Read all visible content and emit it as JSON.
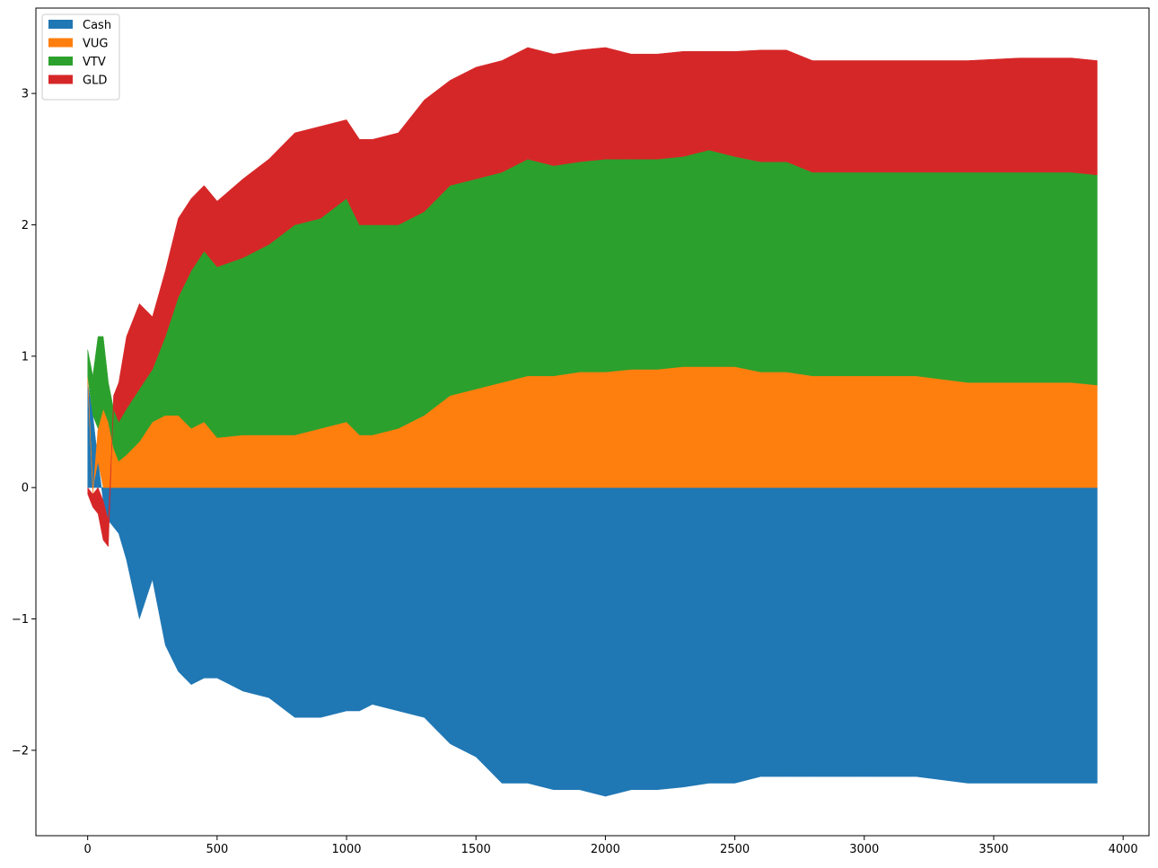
{
  "chart_data": {
    "type": "area",
    "title": "",
    "xlabel": "",
    "ylabel": "",
    "xlim": [
      -200,
      4100
    ],
    "ylim": [
      -2.65,
      3.65
    ],
    "grid": false,
    "legend_position": "top-left",
    "x_ticks": [
      0,
      500,
      1000,
      1500,
      2000,
      2500,
      3000,
      3500,
      4000
    ],
    "x_tick_labels": [
      "0",
      "500",
      "1000",
      "1500",
      "2000",
      "2500",
      "3000",
      "3500",
      "4000"
    ],
    "y_ticks": [
      -2,
      -1,
      0,
      1,
      2,
      3
    ],
    "y_tick_labels": [
      "−2",
      "−1",
      "0",
      "1",
      "2",
      "3"
    ],
    "x": [
      0,
      20,
      40,
      60,
      80,
      100,
      120,
      150,
      200,
      250,
      300,
      350,
      400,
      450,
      500,
      600,
      700,
      800,
      900,
      1000,
      1050,
      1100,
      1200,
      1300,
      1400,
      1500,
      1600,
      1700,
      1800,
      1900,
      2000,
      2100,
      2200,
      2300,
      2400,
      2500,
      2600,
      2700,
      2800,
      2900,
      3000,
      3200,
      3400,
      3600,
      3800,
      3900
    ],
    "series": [
      {
        "name": "Cash",
        "color": "#1f77b4",
        "values": [
          0.8,
          0.55,
          0.2,
          -0.1,
          -0.25,
          -0.3,
          -0.35,
          -0.55,
          -1.0,
          -0.7,
          -1.2,
          -1.4,
          -1.5,
          -1.45,
          -1.45,
          -1.55,
          -1.6,
          -1.75,
          -1.75,
          -1.7,
          -1.7,
          -1.65,
          -1.7,
          -1.75,
          -1.95,
          -2.05,
          -2.25,
          -2.25,
          -2.3,
          -2.3,
          -2.35,
          -2.3,
          -2.3,
          -2.28,
          -2.25,
          -2.25,
          -2.2,
          -2.2,
          -2.2,
          -2.2,
          -2.2,
          -2.2,
          -2.25,
          -2.25,
          -2.25,
          -2.25
        ]
      },
      {
        "name": "VUG",
        "color": "#ff7f0e",
        "values": [
          0.05,
          -0.05,
          0.25,
          0.6,
          0.5,
          0.3,
          0.2,
          0.25,
          0.35,
          0.5,
          0.55,
          0.55,
          0.45,
          0.5,
          0.38,
          0.4,
          0.4,
          0.4,
          0.45,
          0.5,
          0.4,
          0.4,
          0.45,
          0.55,
          0.7,
          0.75,
          0.8,
          0.85,
          0.85,
          0.88,
          0.88,
          0.9,
          0.9,
          0.92,
          0.92,
          0.92,
          0.88,
          0.88,
          0.85,
          0.85,
          0.85,
          0.85,
          0.8,
          0.8,
          0.8,
          0.78
        ]
      },
      {
        "name": "VTV",
        "color": "#2ca02c",
        "values": [
          0.2,
          0.3,
          0.7,
          0.55,
          0.3,
          0.3,
          0.3,
          0.35,
          0.4,
          0.4,
          0.6,
          0.9,
          1.2,
          1.3,
          1.3,
          1.35,
          1.45,
          1.6,
          1.6,
          1.7,
          1.6,
          1.6,
          1.55,
          1.55,
          1.6,
          1.6,
          1.6,
          1.65,
          1.6,
          1.6,
          1.62,
          1.6,
          1.6,
          1.6,
          1.65,
          1.6,
          1.6,
          1.6,
          1.55,
          1.55,
          1.55,
          1.55,
          1.6,
          1.6,
          1.6,
          1.6
        ]
      },
      {
        "name": "GLD",
        "color": "#d62728",
        "values": [
          -0.05,
          -0.1,
          -0.2,
          -0.3,
          -0.2,
          0.1,
          0.3,
          0.55,
          0.65,
          0.4,
          0.5,
          0.6,
          0.55,
          0.5,
          0.5,
          0.6,
          0.65,
          0.7,
          0.7,
          0.6,
          0.65,
          0.65,
          0.7,
          0.85,
          0.8,
          0.85,
          0.85,
          0.85,
          0.85,
          0.85,
          0.85,
          0.8,
          0.8,
          0.8,
          0.75,
          0.8,
          0.85,
          0.85,
          0.85,
          0.85,
          0.85,
          0.85,
          0.85,
          0.87,
          0.87,
          0.87
        ]
      }
    ]
  }
}
